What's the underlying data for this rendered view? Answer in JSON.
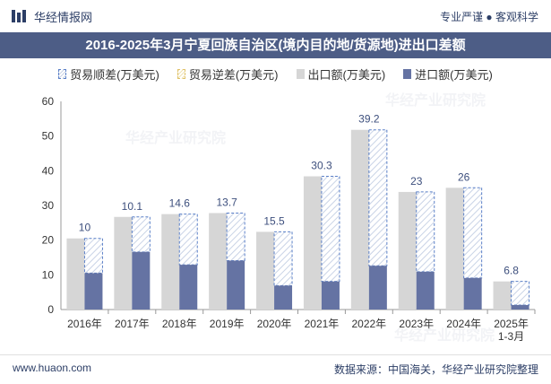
{
  "header": {
    "brand": "华经情报网",
    "tagline": "专业严谨 ● 客观科学"
  },
  "title": "2016-2025年3月宁夏回族自治区(境内目的地/货源地)进出口差额",
  "legend": {
    "surplus": "贸易顺差(万美元)",
    "deficit": "贸易逆差(万美元)",
    "export": "出口额(万美元)",
    "import": "进口额(万美元)"
  },
  "footer": {
    "website": "www.huaon.com",
    "source": "数据来源：中国海关，华经产业研究院整理"
  },
  "watermark": "华经产业研究院",
  "chart_data": {
    "type": "bar",
    "categories": [
      "2016年",
      "2017年",
      "2018年",
      "2019年",
      "2020年",
      "2021年",
      "2022年",
      "2023年",
      "2024年",
      "2025年\n1-3月"
    ],
    "series": [
      {
        "name": "出口额(万美元)",
        "values": [
          20.5,
          26.7,
          27.5,
          27.8,
          22.4,
          38.4,
          51.8,
          33.9,
          35.1,
          8.1
        ]
      },
      {
        "name": "进口额(万美元)",
        "values": [
          10.5,
          16.6,
          12.9,
          14.1,
          6.9,
          8.1,
          12.6,
          10.9,
          9.1,
          1.3
        ]
      },
      {
        "name": "贸易顺差(万美元)",
        "values": [
          10,
          10.1,
          14.6,
          13.7,
          15.5,
          30.3,
          39.2,
          23,
          26,
          6.8
        ]
      }
    ],
    "data_labels": [
      "10",
      "10.1",
      "14.6",
      "13.7",
      "15.5",
      "30.3",
      "39.2",
      "23",
      "26",
      "6.8"
    ],
    "yticks": [
      "0",
      "10",
      "20",
      "30",
      "40",
      "50",
      "60"
    ],
    "ylim": [
      0,
      60
    ],
    "colors": {
      "export": "#d6d6d6",
      "import": "#6573a3",
      "surplus_border": "#5b80c8",
      "surplus_hatch": "#c9d3e6",
      "data_label": "#3d4f7d"
    }
  }
}
